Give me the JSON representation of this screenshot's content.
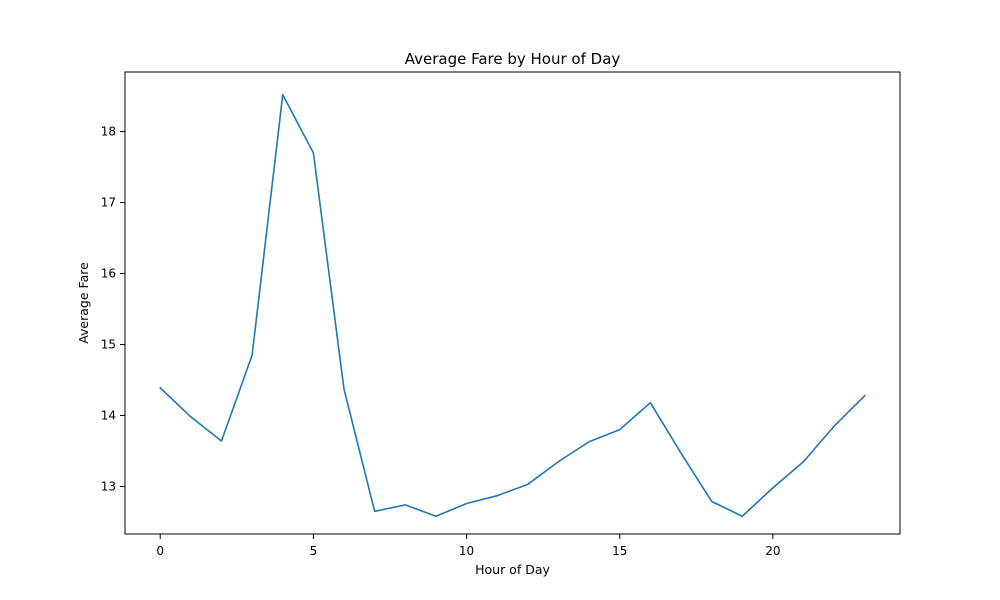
{
  "chart_data": {
    "type": "line",
    "title": "Average Fare by Hour of Day",
    "xlabel": "Hour of Day",
    "ylabel": "Average Fare",
    "xlim": [
      -1.15,
      24.15
    ],
    "ylim": [
      12.33,
      18.84
    ],
    "xticks": [
      0,
      5,
      10,
      15,
      20
    ],
    "yticks": [
      13,
      14,
      15,
      16,
      17,
      18
    ],
    "grid": false,
    "series": [
      {
        "color": "#1f77b4",
        "x": [
          0,
          1,
          2,
          3,
          4,
          5,
          6,
          7,
          8,
          9,
          10,
          11,
          12,
          13,
          14,
          15,
          16,
          17,
          18,
          19,
          20,
          21,
          22,
          23
        ],
        "values": [
          14.39,
          13.98,
          13.64,
          14.85,
          18.52,
          17.7,
          14.37,
          12.65,
          12.74,
          12.58,
          12.76,
          12.87,
          13.03,
          13.35,
          13.63,
          13.8,
          14.18,
          13.47,
          12.79,
          12.58,
          12.98,
          13.35,
          13.85,
          14.28
        ]
      }
    ]
  }
}
